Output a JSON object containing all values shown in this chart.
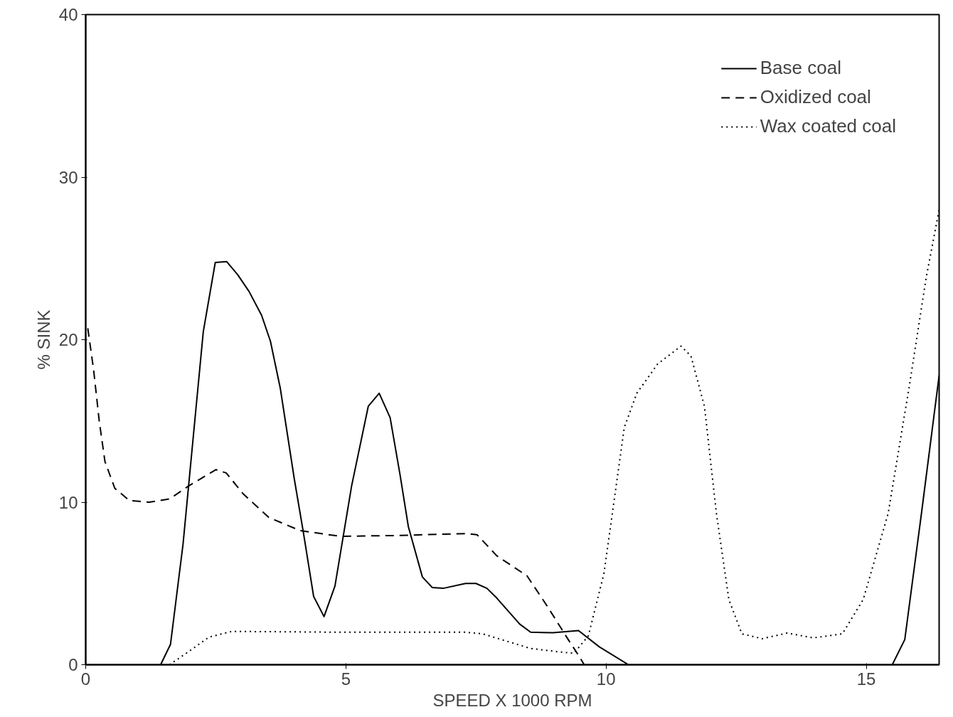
{
  "chart_data": {
    "type": "line",
    "xlabel": "SPEED X 1000 RPM",
    "ylabel": "% SINK",
    "xlim": [
      0,
      16.4
    ],
    "ylim": [
      0,
      40
    ],
    "xticks": [
      0,
      5,
      10,
      15
    ],
    "yticks": [
      0,
      10,
      20,
      30,
      40
    ],
    "grid": false,
    "legend": "top right",
    "marker": "none",
    "series": [
      {
        "name": "Base coal",
        "color": "#000000",
        "line_style": "solid",
        "x": [
          1.44,
          1.63,
          1.87,
          2.26,
          2.49,
          2.71,
          2.92,
          3.14,
          3.38,
          3.55,
          3.74,
          4.01,
          4.18,
          4.38,
          4.58,
          4.79,
          5.11,
          5.43,
          5.64,
          5.85,
          6.04,
          6.2,
          6.47,
          6.66,
          6.87,
          7.3,
          7.5,
          7.71,
          7.9,
          8.34,
          8.55,
          8.98,
          9.47,
          9.87,
          10.43,
          10.8,
          15.5,
          15.74,
          16.06,
          16.4
        ],
        "values": [
          0,
          1.26,
          7.4,
          20.5,
          24.75,
          24.8,
          24.0,
          22.96,
          21.5,
          19.9,
          17.0,
          11.4,
          8.2,
          4.2,
          2.96,
          4.84,
          11.0,
          15.9,
          16.7,
          15.2,
          11.7,
          8.5,
          5.4,
          4.75,
          4.7,
          5.0,
          5.0,
          4.7,
          4.1,
          2.5,
          2.0,
          1.97,
          2.1,
          1.1,
          0,
          null,
          0,
          1.55,
          9.3,
          17.8
        ]
      },
      {
        "name": "Oxidized coal",
        "color": "#000000",
        "line_style": "dashed",
        "x": [
          0.04,
          0.15,
          0.26,
          0.37,
          0.56,
          0.84,
          1.22,
          1.61,
          1.98,
          2.5,
          2.7,
          3.03,
          3.52,
          4.12,
          4.89,
          5.99,
          7.3,
          7.52,
          7.9,
          8.48,
          8.87,
          9.27,
          9.47,
          9.58
        ],
        "values": [
          20.7,
          18.2,
          15.0,
          12.5,
          10.85,
          10.1,
          10.0,
          10.2,
          11.0,
          12.0,
          11.8,
          10.5,
          9.06,
          8.25,
          7.9,
          7.95,
          8.07,
          8.0,
          6.7,
          5.47,
          3.6,
          1.56,
          0.58,
          0
        ]
      },
      {
        "name": "Wax coated coal",
        "color": "#000000",
        "line_style": "dotted",
        "x": [
          1.61,
          1.93,
          2.37,
          2.81,
          4.89,
          7.3,
          7.63,
          8.55,
          9.07,
          9.38,
          9.66,
          9.96,
          10.35,
          10.59,
          10.99,
          11.44,
          11.63,
          11.89,
          12.12,
          12.36,
          12.61,
          13.0,
          13.48,
          13.98,
          14.54,
          14.94,
          15.42,
          15.83,
          16.15,
          16.4
        ],
        "values": [
          0,
          0.7,
          1.7,
          2.05,
          2.0,
          2.0,
          1.9,
          1.0,
          0.8,
          0.7,
          1.78,
          5.63,
          14.6,
          16.7,
          18.5,
          19.6,
          19.0,
          15.9,
          9.3,
          4.0,
          1.9,
          1.6,
          1.95,
          1.65,
          1.9,
          4.0,
          9.3,
          17.2,
          23.8,
          28.0
        ]
      }
    ]
  }
}
